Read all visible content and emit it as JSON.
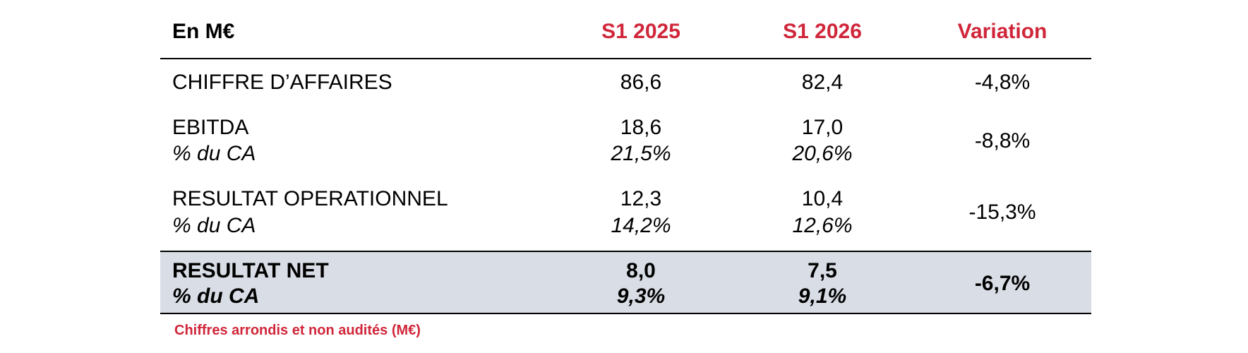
{
  "table": {
    "header": [
      "En M€",
      "S1 2025",
      "S1 2026",
      "Variation"
    ],
    "rows": [
      {
        "label": "CHIFFRE D’AFFAIRES",
        "values": [
          "86,6",
          "82,4"
        ],
        "variation": "-4,8%"
      },
      {
        "label": "EBITDA",
        "sublabel": "% du CA",
        "values": [
          "18,6",
          "17,0"
        ],
        "margins": [
          "21,5%",
          "20,6%"
        ],
        "variation": "-8,8%"
      },
      {
        "label": "RESULTAT OPERATIONNEL",
        "sublabel": "% du CA",
        "values": [
          "12,3",
          "10,4"
        ],
        "margins": [
          "14,2%",
          "12,6%"
        ],
        "variation": "-15,3%"
      },
      {
        "label": "RESULTAT NET",
        "sublabel": "% du CA",
        "values": [
          "8,0",
          "7,5"
        ],
        "margins": [
          "9,3%",
          "9,1%"
        ],
        "variation": "-6,7%"
      }
    ]
  },
  "footnote": "Chiffres arrondis et non audités (M€)"
}
